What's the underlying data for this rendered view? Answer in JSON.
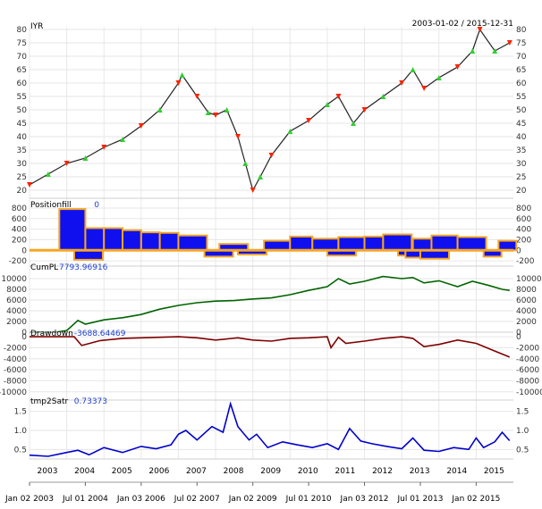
{
  "chart_data": [
    {
      "type": "line",
      "title": "IYR",
      "date_range_label": "2003-01-02 / 2015-12-31",
      "ylim": [
        17,
        81
      ],
      "y_ticks": [
        20,
        25,
        30,
        35,
        40,
        45,
        50,
        55,
        60,
        65,
        70,
        75,
        80
      ],
      "series": [
        {
          "x": [
            2003.0,
            2003.5,
            2004.0,
            2004.5,
            2005.0,
            2005.5,
            2006.0,
            2006.5,
            2007.0,
            2007.1,
            2007.5,
            2007.8,
            2008.0,
            2008.3,
            2008.6,
            2008.8,
            2009.0,
            2009.2,
            2009.5,
            2010.0,
            2010.5,
            2011.0,
            2011.3,
            2011.7,
            2012.0,
            2012.5,
            2013.0,
            2013.3,
            2013.6,
            2014.0,
            2014.5,
            2014.9,
            2015.1,
            2015.5,
            2015.9
          ],
          "y": [
            22,
            26,
            30,
            32,
            36,
            39,
            44,
            50,
            60,
            63,
            55,
            49,
            48,
            50,
            40,
            30,
            20,
            25,
            33,
            42,
            46,
            52,
            55,
            45,
            50,
            55,
            60,
            65,
            58,
            62,
            66,
            72,
            80,
            72,
            75
          ]
        }
      ],
      "markers": {
        "buy_color": "#33cc33",
        "sell_color": "#ff2200"
      }
    },
    {
      "type": "bar",
      "title": "Positionfill",
      "last_value": "0",
      "ylim": [
        -300,
        850
      ],
      "y_ticks": [
        -200,
        0,
        200,
        400,
        600,
        800
      ],
      "series": [
        {
          "name": "long",
          "color": "#1010ee",
          "x": [
            2003.8,
            2004.5,
            2005.0,
            2005.5,
            2006.0,
            2006.5,
            2007.0,
            2008.1,
            2009.3,
            2010.0,
            2010.6,
            2011.3,
            2012.0,
            2012.5,
            2013.3,
            2013.8,
            2014.5,
            2015.6
          ],
          "y": [
            780,
            420,
            420,
            380,
            340,
            330,
            280,
            120,
            180,
            260,
            220,
            250,
            260,
            300,
            220,
            280,
            250,
            180
          ]
        },
        {
          "name": "short",
          "color": "#1010ee",
          "x": [
            2004.2,
            2007.7,
            2008.6,
            2011.0,
            2012.9,
            2013.1,
            2013.5,
            2015.2
          ],
          "y": [
            -180,
            -120,
            -80,
            -100,
            -100,
            -140,
            -160,
            -120
          ]
        }
      ],
      "outline_color": "#f5a623"
    },
    {
      "type": "line",
      "title": "CumPL",
      "last_value": "7793.96916",
      "ylim": [
        0,
        12000
      ],
      "y_ticks": [
        0,
        2000,
        4000,
        6000,
        8000,
        10000
      ],
      "y_tick_labels": [
        "0",
        "2000",
        "4000",
        "6000",
        "8000",
        "10000"
      ],
      "series": [
        {
          "color": "#006400",
          "x": [
            2003.0,
            2003.7,
            2004.0,
            2004.3,
            2004.5,
            2005.0,
            2005.5,
            2006.0,
            2006.5,
            2007.0,
            2007.5,
            2008.0,
            2008.5,
            2009.0,
            2009.5,
            2010.0,
            2010.5,
            2011.0,
            2011.3,
            2011.6,
            2012.0,
            2012.5,
            2013.0,
            2013.3,
            2013.6,
            2014.0,
            2014.5,
            2014.9,
            2015.3,
            2015.7,
            2015.9
          ],
          "y": [
            0,
            0,
            300,
            2200,
            1500,
            2300,
            2700,
            3300,
            4300,
            5000,
            5500,
            5800,
            5900,
            6200,
            6400,
            7000,
            7800,
            8500,
            10000,
            9000,
            9500,
            10400,
            10000,
            10200,
            9200,
            9600,
            8500,
            9500,
            8800,
            8000,
            7800
          ]
        }
      ]
    },
    {
      "type": "line",
      "title": "Drawdown",
      "last_value": "-3688.64469",
      "ylim": [
        -11500,
        500
      ],
      "y_ticks": [
        -10000,
        -8000,
        -6000,
        -4000,
        -2000,
        0
      ],
      "y_tick_labels": [
        "-10000",
        "-8000",
        "-6000",
        "-4000",
        "-2000",
        "0"
      ],
      "series": [
        {
          "color": "#800000",
          "x": [
            2003.0,
            2003.7,
            2004.2,
            2004.4,
            2004.9,
            2005.5,
            2006.0,
            2006.5,
            2007.0,
            2007.5,
            2008.0,
            2008.6,
            2009.0,
            2009.5,
            2010.0,
            2010.5,
            2011.0,
            2011.1,
            2011.3,
            2011.5,
            2012.0,
            2012.5,
            2013.0,
            2013.3,
            2013.6,
            2014.0,
            2014.5,
            2015.0,
            2015.5,
            2015.9
          ],
          "y": [
            0,
            0,
            0,
            -1600,
            -700,
            -300,
            -200,
            -100,
            0,
            -200,
            -600,
            -200,
            -600,
            -800,
            -300,
            -200,
            0,
            -2000,
            -100,
            -1200,
            -800,
            -300,
            0,
            -300,
            -1800,
            -1400,
            -600,
            -1200,
            -2600,
            -3700
          ]
        }
      ]
    },
    {
      "type": "line",
      "title": "tmp2Satr",
      "last_value": "0.73373",
      "ylim": [
        0.25,
        1.75
      ],
      "y_ticks": [
        0.5,
        1.0,
        1.5
      ],
      "y_tick_labels": [
        "0.5",
        "1.0",
        "1.5"
      ],
      "series": [
        {
          "color": "#0000cc",
          "x": [
            2003.0,
            2003.5,
            2004.0,
            2004.3,
            2004.6,
            2005.0,
            2005.5,
            2006.0,
            2006.4,
            2006.8,
            2007.0,
            2007.2,
            2007.5,
            2007.9,
            2008.2,
            2008.4,
            2008.6,
            2008.9,
            2009.1,
            2009.4,
            2009.8,
            2010.2,
            2010.6,
            2011.0,
            2011.3,
            2011.6,
            2011.9,
            2012.2,
            2012.6,
            2013.0,
            2013.3,
            2013.6,
            2014.0,
            2014.4,
            2014.8,
            2015.0,
            2015.2,
            2015.5,
            2015.7,
            2015.9
          ],
          "y": [
            0.35,
            0.32,
            0.42,
            0.48,
            0.36,
            0.55,
            0.42,
            0.58,
            0.52,
            0.62,
            0.9,
            1.0,
            0.75,
            1.1,
            0.95,
            1.7,
            1.1,
            0.75,
            0.9,
            0.55,
            0.7,
            0.62,
            0.55,
            0.65,
            0.5,
            1.05,
            0.72,
            0.65,
            0.58,
            0.52,
            0.8,
            0.48,
            0.45,
            0.55,
            0.5,
            0.8,
            0.55,
            0.7,
            0.95,
            0.73
          ]
        }
      ]
    }
  ],
  "x_axis": {
    "year_labels": [
      "2003",
      "2004",
      "2005",
      "2006",
      "2007",
      "2008",
      "2009",
      "2010",
      "2011",
      "2012",
      "2013",
      "2014",
      "2015"
    ],
    "date_labels": [
      {
        "label": "Jan 02 2003",
        "x": 2003.0
      },
      {
        "label": "Jul 01 2004",
        "x": 2004.5
      },
      {
        "label": "Jan 03 2006",
        "x": 2006.0
      },
      {
        "label": "Jul 02 2007",
        "x": 2007.5
      },
      {
        "label": "Jan 02 2009",
        "x": 2009.0
      },
      {
        "label": "Jul 01 2010",
        "x": 2010.5
      },
      {
        "label": "Jan 03 2012",
        "x": 2012.0
      },
      {
        "label": "Jul 01 2013",
        "x": 2013.5
      },
      {
        "label": "Jan 02 2015",
        "x": 2015.0
      }
    ]
  }
}
